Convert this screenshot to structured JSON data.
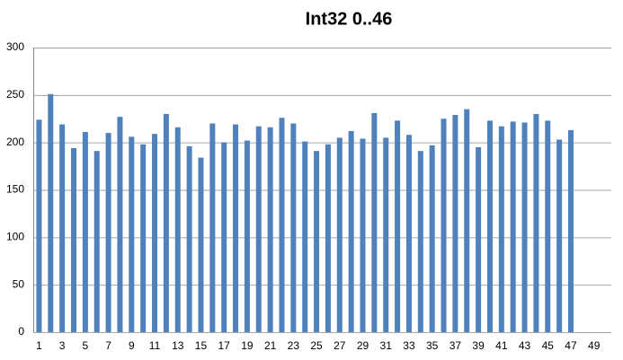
{
  "chart_data": {
    "type": "bar",
    "title": "Int32 0..46",
    "categories": [
      1,
      null,
      3,
      null,
      5,
      null,
      7,
      null,
      9,
      null,
      11,
      null,
      13,
      null,
      15,
      null,
      17,
      null,
      19,
      null,
      21,
      null,
      23,
      null,
      25,
      null,
      27,
      null,
      29,
      null,
      31,
      null,
      33,
      null,
      35,
      null,
      37,
      null,
      39,
      null,
      41,
      null,
      43,
      null,
      45,
      null,
      47,
      null,
      49,
      null
    ],
    "values": [
      224,
      251,
      219,
      194,
      211,
      191,
      210,
      227,
      206,
      198,
      209,
      230,
      216,
      196,
      184,
      220,
      200,
      219,
      202,
      217,
      216,
      226,
      220,
      201,
      191,
      198,
      205,
      212,
      204,
      231,
      205,
      223,
      208,
      191,
      197,
      225,
      229,
      235,
      195,
      223,
      217,
      222,
      221,
      230,
      223,
      203,
      213,
      null,
      null,
      null
    ],
    "color": "#4f81bd",
    "ylim": [
      0,
      300
    ],
    "yticks": [
      0,
      50,
      100,
      150,
      200,
      250,
      300
    ],
    "grid": true
  }
}
